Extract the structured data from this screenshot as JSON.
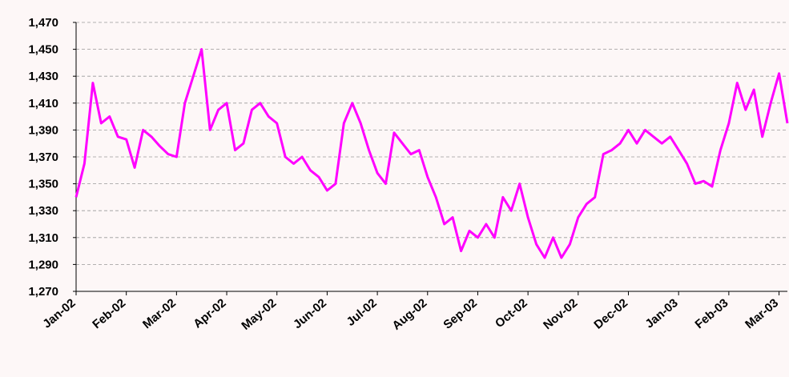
{
  "chart_data": {
    "type": "line",
    "categories": [
      "Jan-02",
      null,
      null,
      null,
      null,
      null,
      "Feb-02",
      null,
      null,
      null,
      null,
      null,
      "Mar-02",
      null,
      null,
      null,
      null,
      null,
      "Apr-02",
      null,
      null,
      null,
      null,
      null,
      "May-02",
      null,
      null,
      null,
      null,
      null,
      "Jun-02",
      null,
      null,
      null,
      null,
      null,
      "Jul-02",
      null,
      null,
      null,
      null,
      null,
      "Aug-02",
      null,
      null,
      null,
      null,
      null,
      "Sep-02",
      null,
      null,
      null,
      null,
      null,
      "Oct-02",
      null,
      null,
      null,
      null,
      null,
      "Nov-02",
      null,
      null,
      null,
      null,
      null,
      "Dec-02",
      null,
      null,
      null,
      null,
      null,
      "Jan-03",
      null,
      null,
      null,
      null,
      null,
      "Feb-03",
      null,
      null,
      null,
      null,
      null,
      "Mar-03",
      null
    ],
    "series": [
      {
        "color": "#ff00ff",
        "values": [
          1340,
          1365,
          1425,
          1395,
          1400,
          1385,
          1383,
          1362,
          1390,
          1385,
          1378,
          1372,
          1370,
          1410,
          1430,
          1450,
          1390,
          1405,
          1410,
          1375,
          1380,
          1405,
          1410,
          1400,
          1395,
          1370,
          1365,
          1370,
          1360,
          1355,
          1345,
          1350,
          1395,
          1410,
          1395,
          1375,
          1358,
          1350,
          1388,
          1380,
          1372,
          1375,
          1355,
          1340,
          1320,
          1325,
          1300,
          1315,
          1310,
          1320,
          1310,
          1340,
          1330,
          1350,
          1325,
          1305,
          1295,
          1310,
          1295,
          1305,
          1325,
          1335,
          1340,
          1372,
          1375,
          1380,
          1390,
          1380,
          1390,
          1385,
          1380,
          1385,
          1375,
          1365,
          1350,
          1352,
          1348,
          1375,
          1395,
          1425,
          1405,
          1420,
          1385,
          1410,
          1432,
          1395
        ]
      }
    ],
    "ylim": [
      1270,
      1470
    ],
    "yticks": [
      {
        "value": 1270,
        "label": "1,270"
      },
      {
        "value": 1290,
        "label": "1,290"
      },
      {
        "value": 1310,
        "label": "1,310"
      },
      {
        "value": 1330,
        "label": "1,330"
      },
      {
        "value": 1350,
        "label": "1,350"
      },
      {
        "value": 1370,
        "label": "1,370"
      },
      {
        "value": 1390,
        "label": "1,390"
      },
      {
        "value": 1410,
        "label": "1,410"
      },
      {
        "value": 1430,
        "label": "1,430"
      },
      {
        "value": 1450,
        "label": "1,450"
      },
      {
        "value": 1470,
        "label": "1,470"
      }
    ],
    "grid": true
  }
}
